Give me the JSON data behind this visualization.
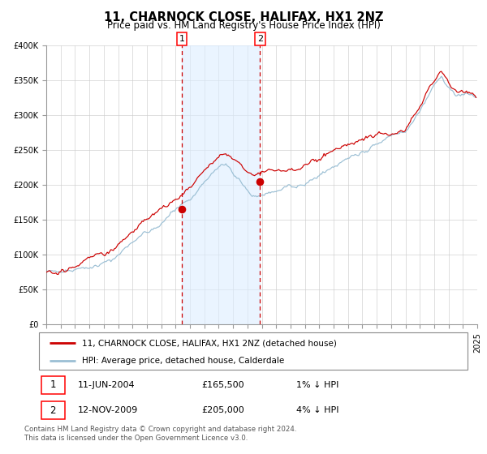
{
  "title": "11, CHARNOCK CLOSE, HALIFAX, HX1 2NZ",
  "subtitle": "Price paid vs. HM Land Registry's House Price Index (HPI)",
  "legend_line1": "11, CHARNOCK CLOSE, HALIFAX, HX1 2NZ (detached house)",
  "legend_line2": "HPI: Average price, detached house, Calderdale",
  "transaction1_date": "11-JUN-2004",
  "transaction1_price": 165500,
  "transaction1_label": "1% ↓ HPI",
  "transaction1_year": 2004.44,
  "transaction2_date": "12-NOV-2009",
  "transaction2_price": 205000,
  "transaction2_label": "4% ↓ HPI",
  "transaction2_year": 2009.87,
  "red_color": "#cc0000",
  "blue_color": "#9bbfd4",
  "shade_color": "#ddeeff",
  "ylim_min": 0,
  "ylim_max": 400000,
  "footnote": "Contains HM Land Registry data © Crown copyright and database right 2024.\nThis data is licensed under the Open Government Licence v3.0."
}
